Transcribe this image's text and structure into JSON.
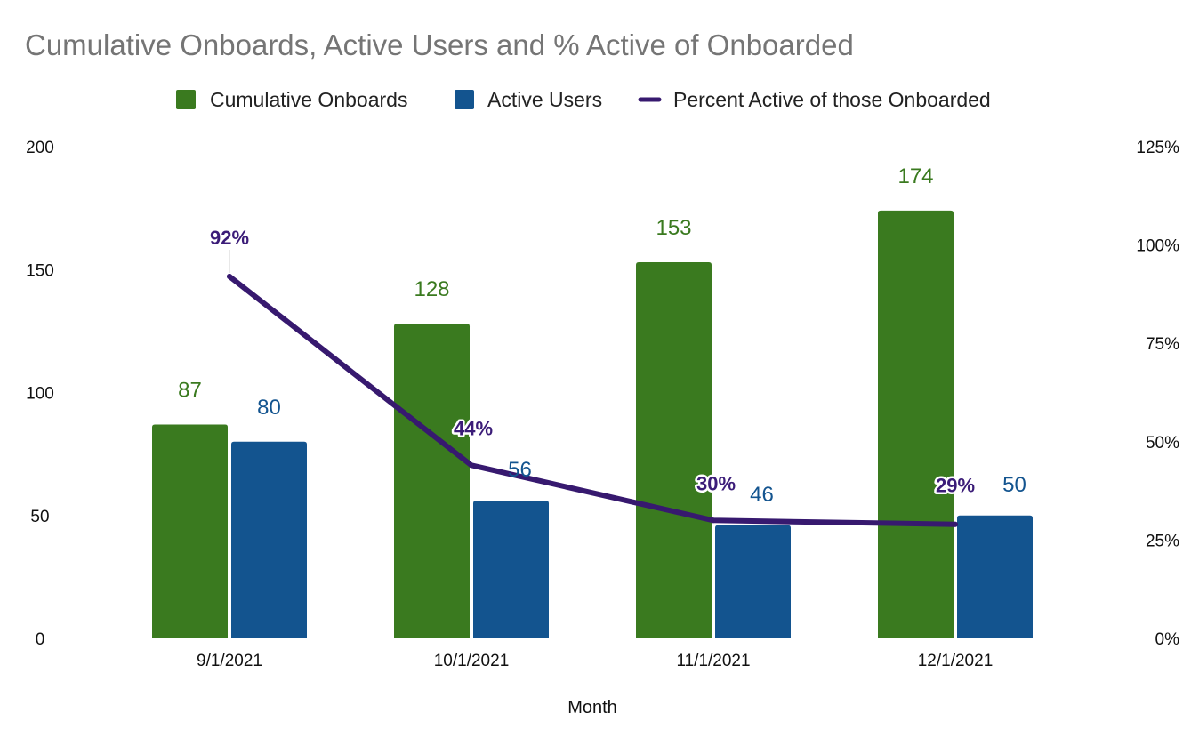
{
  "chart_data": {
    "type": "bar",
    "title": "Cumulative Onboards, Active Users and % Active of Onboarded",
    "xlabel": "Month",
    "ylabel": "",
    "y2label": "",
    "categories": [
      "9/1/2021",
      "10/1/2021",
      "11/1/2021",
      "12/1/2021"
    ],
    "series": [
      {
        "name": "Cumulative Onboards",
        "type": "bar",
        "axis": "left",
        "color": "#3a7a1f",
        "label_color": "#3a7a1f",
        "values": [
          87,
          128,
          153,
          174
        ],
        "labels": [
          "87",
          "128",
          "153",
          "174"
        ]
      },
      {
        "name": "Active Users",
        "type": "bar",
        "axis": "left",
        "color": "#13548f",
        "label_color": "#13548f",
        "values": [
          80,
          56,
          46,
          50
        ],
        "labels": [
          "80",
          "56",
          "46",
          "50"
        ]
      },
      {
        "name": "Percent Active of those Onboarded",
        "type": "line",
        "axis": "right",
        "color": "#37196f",
        "values": [
          92,
          44,
          30,
          29
        ],
        "labels": [
          "92%",
          "44%",
          "30%",
          "29%"
        ]
      }
    ],
    "ylim": [
      0,
      200
    ],
    "y_ticks": [
      "0",
      "50",
      "100",
      "150",
      "200"
    ],
    "y2lim": [
      0,
      125
    ],
    "y2_ticks": [
      "0%",
      "25%",
      "50%",
      "75%",
      "100%",
      "125%"
    ],
    "legend_position": "top-center",
    "grid": false
  }
}
